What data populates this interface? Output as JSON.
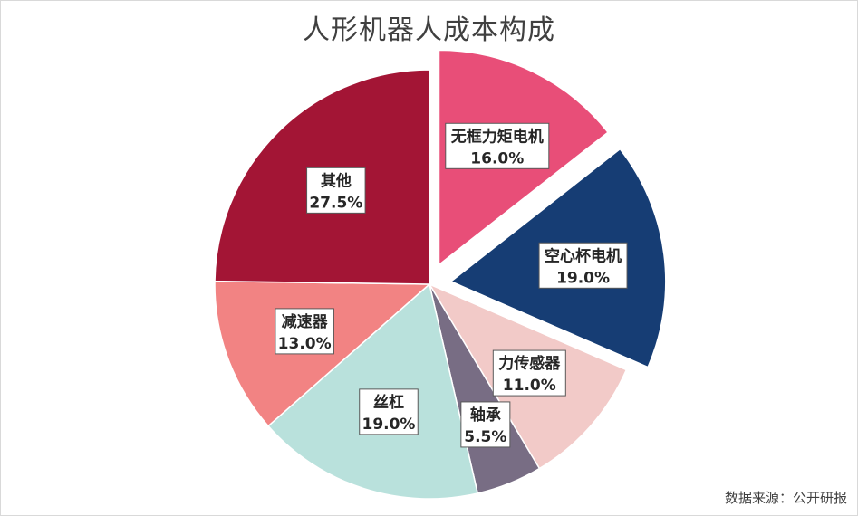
{
  "chart_data": {
    "type": "pie",
    "title": "人形机器人成本构成",
    "source": "数据来源：公开研报",
    "slices": [
      {
        "label": "无框力矩电机",
        "value": 16.0,
        "display": "16.0%",
        "color": "#e84e78",
        "exploded": true
      },
      {
        "label": "空心杯电机",
        "value": 19.0,
        "display": "19.0%",
        "color": "#163d74",
        "exploded": true
      },
      {
        "label": "力传感器",
        "value": 11.0,
        "display": "11.0%",
        "color": "#f2cac8",
        "exploded": false
      },
      {
        "label": "轴承",
        "value": 5.5,
        "display": "5.5%",
        "color": "#786d84",
        "exploded": false
      },
      {
        "label": "丝杠",
        "value": 19.0,
        "display": "19.0%",
        "color": "#b9e1dc",
        "exploded": false
      },
      {
        "label": "减速器",
        "value": 13.0,
        "display": "13.0%",
        "color": "#f28383",
        "exploded": false
      },
      {
        "label": "其他",
        "value": 27.5,
        "display": "27.5%",
        "color": "#a31535",
        "exploded": false
      }
    ]
  }
}
